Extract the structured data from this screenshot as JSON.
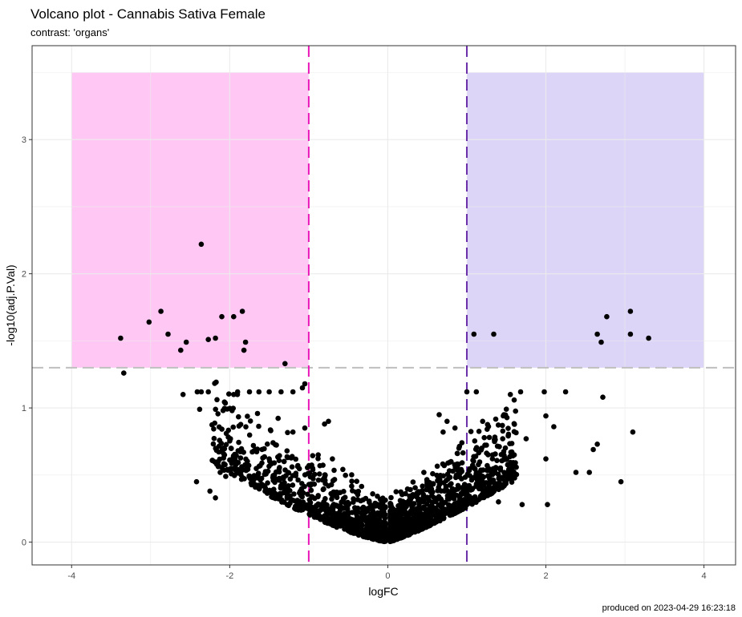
{
  "chart_data": {
    "type": "scatter",
    "title": "Volcano plot - Cannabis Sativa Female",
    "subtitle": "contrast: 'organs'",
    "xlabel": "logFC",
    "ylabel": "-log10(adj.P.Val)",
    "caption": "produced on 2023-04-29 16:23:18",
    "xlim": [
      -4.5,
      4.4
    ],
    "ylim": [
      -0.17,
      3.7
    ],
    "x_ticks": [
      -4,
      -2,
      0,
      2,
      4
    ],
    "y_ticks": [
      0,
      1,
      2,
      3
    ],
    "grid": true,
    "colors": {
      "point": "#000000",
      "down_region": "#ffc8f4",
      "up_region": "#ddd5f7",
      "down_line": "#e916b9",
      "up_line": "#6a2ea8",
      "threshold_line": "#bfbfbf",
      "grid": "#ebebeb",
      "panel_border": "#333333"
    },
    "regions": [
      {
        "x": [
          -4,
          -1
        ],
        "y": [
          1.3,
          3.5
        ],
        "color": "#ffc8f4"
      },
      {
        "x": [
          1,
          4
        ],
        "y": [
          1.3,
          3.5
        ],
        "color": "#ddd5f7"
      }
    ],
    "vlines": [
      {
        "x": -1,
        "color": "#e916b9",
        "dash": true
      },
      {
        "x": 1,
        "color": "#6a2ea8",
        "dash": true
      }
    ],
    "hlines": [
      {
        "y": 1.3,
        "color": "#bfbfbf",
        "dash": true
      }
    ],
    "points": [
      [
        -3.38,
        1.52
      ],
      [
        -3.02,
        1.64
      ],
      [
        -2.87,
        1.72
      ],
      [
        -2.78,
        1.55
      ],
      [
        -2.62,
        1.43
      ],
      [
        -2.55,
        1.49
      ],
      [
        -2.36,
        2.22
      ],
      [
        -2.27,
        1.51
      ],
      [
        -2.18,
        1.52
      ],
      [
        -2.1,
        1.68
      ],
      [
        -1.95,
        1.68
      ],
      [
        -1.84,
        1.72
      ],
      [
        -1.82,
        1.43
      ],
      [
        -1.8,
        1.49
      ],
      [
        -1.3,
        1.33
      ],
      [
        -3.34,
        1.26
      ],
      [
        1.09,
        1.55
      ],
      [
        1.34,
        1.55
      ],
      [
        2.65,
        1.55
      ],
      [
        2.7,
        1.49
      ],
      [
        2.77,
        1.68
      ],
      [
        3.07,
        1.72
      ],
      [
        3.07,
        1.55
      ],
      [
        3.3,
        1.52
      ],
      [
        -2.59,
        1.1
      ],
      [
        -2.41,
        1.12
      ],
      [
        -2.36,
        1.12
      ],
      [
        -2.27,
        1.12
      ],
      [
        -1.95,
        1.1
      ],
      [
        -1.9,
        1.12
      ],
      [
        -1.75,
        1.12
      ],
      [
        -1.63,
        1.12
      ],
      [
        -1.5,
        1.12
      ],
      [
        -1.35,
        1.12
      ],
      [
        -1.2,
        1.12
      ],
      [
        -1.08,
        1.15
      ],
      [
        -1.05,
        1.18
      ],
      [
        -2.38,
        0.99
      ],
      [
        1.0,
        1.12
      ],
      [
        1.12,
        1.12
      ],
      [
        1.55,
        1.1
      ],
      [
        1.68,
        1.12
      ],
      [
        1.98,
        1.12
      ],
      [
        2.25,
        1.12
      ],
      [
        2.72,
        1.08
      ],
      [
        2.95,
        0.45
      ],
      [
        3.1,
        0.82
      ],
      [
        2.55,
        0.52
      ],
      [
        2.38,
        0.52
      ],
      [
        2.65,
        0.73
      ],
      [
        2.6,
        0.69
      ],
      [
        2.02,
        0.28
      ],
      [
        2.0,
        0.62
      ],
      [
        2.0,
        0.94
      ],
      [
        2.1,
        0.86
      ],
      [
        -2.18,
        0.33
      ],
      [
        -2.12,
        0.52
      ],
      [
        -2.05,
        0.49
      ],
      [
        -2.25,
        0.38
      ],
      [
        -2.42,
        0.45
      ],
      [
        -1.5,
        0.62
      ],
      [
        -1.2,
        0.82
      ],
      [
        -1.05,
        0.85
      ],
      [
        -0.8,
        0.88
      ],
      [
        -0.75,
        0.9
      ],
      [
        -0.95,
        0.55
      ],
      [
        -0.88,
        0.65
      ],
      [
        -0.7,
        0.62
      ],
      [
        0.7,
        0.82
      ],
      [
        0.75,
        0.9
      ],
      [
        0.65,
        0.95
      ],
      [
        0.85,
        0.85
      ],
      [
        1.2,
        0.9
      ],
      [
        1.45,
        0.87
      ],
      [
        1.35,
        0.75
      ],
      [
        0.9,
        0.7
      ],
      [
        0.8,
        0.6
      ],
      [
        1.6,
        0.65
      ],
      [
        1.75,
        0.77
      ],
      [
        1.5,
        0.5
      ],
      [
        1.3,
        0.4
      ],
      [
        1.1,
        0.3
      ],
      [
        1.4,
        0.3
      ],
      [
        1.7,
        0.28
      ]
    ]
  }
}
